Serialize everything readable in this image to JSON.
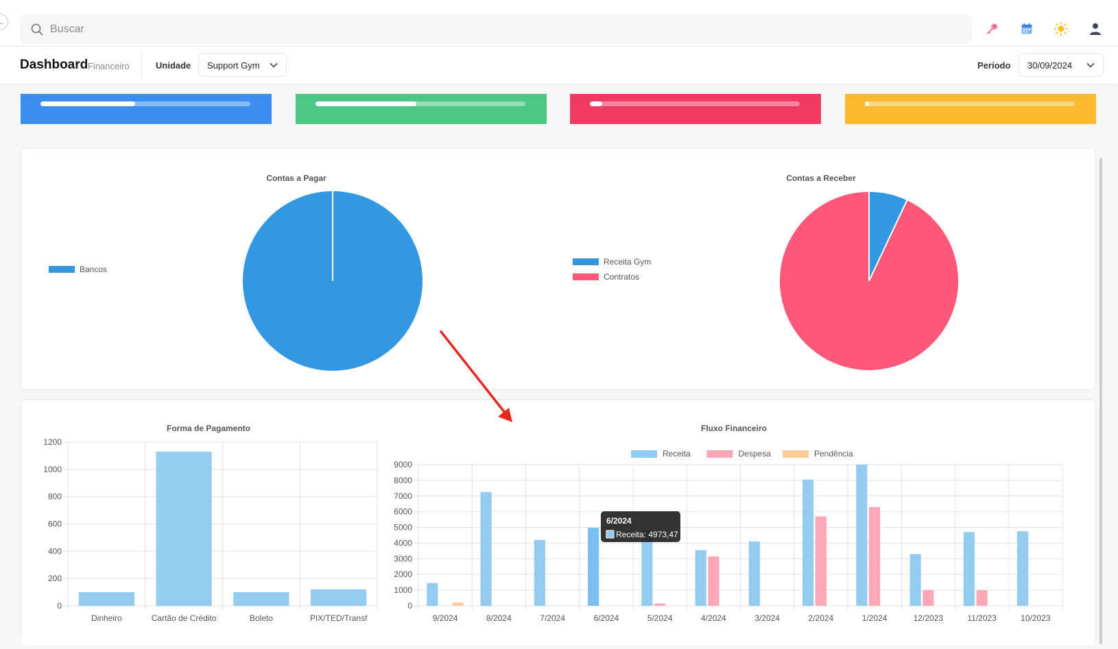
{
  "header": {
    "search_placeholder": "Buscar",
    "icons": [
      "back-icon",
      "search-icon",
      "key-icon",
      "calendar-icon",
      "sun-icon",
      "user-icon"
    ]
  },
  "subheader": {
    "title": "Dashboard",
    "subtitle": "Financeiro",
    "unit_label": "Unidade",
    "unit_value": "Support Gym",
    "period_label": "Período",
    "period_value": "30/09/2024"
  },
  "kpi_cards": [
    {
      "color": "#3b8eee",
      "progress": 0.45
    },
    {
      "color": "#4cc784",
      "progress": 0.48
    },
    {
      "color": "#ef3b62",
      "progress": 0.06
    },
    {
      "color": "#fcbb2e",
      "progress": 0.02
    }
  ],
  "colors": {
    "blue_solid": "#3298e2",
    "pink_solid": "#ff5777",
    "bar_blue": "#93cbf1",
    "bar_blue_active": "#79bff0",
    "bar_pink": "#ffa6b7",
    "bar_orange": "#ffcb9b",
    "arrow": "#e8271f"
  },
  "annotation": {
    "type": "arrow",
    "color": "#e8271f"
  },
  "chart_data": [
    {
      "type": "pie",
      "title": "Contas a Pagar",
      "labels": [
        "Bancos"
      ],
      "values": [
        100
      ],
      "colors": [
        "#3298e2"
      ]
    },
    {
      "type": "pie",
      "title": "Contas a Receber",
      "labels": [
        "Receita Gym",
        "Contratos"
      ],
      "values": [
        7,
        93
      ],
      "colors": [
        "#3298e2",
        "#ff5777"
      ]
    },
    {
      "type": "bar",
      "title": "Forma de Pagamento",
      "categories": [
        "Dinheiro",
        "Cartão de Crédito",
        "Boleto",
        "PIX/TED/Transf"
      ],
      "values": [
        100,
        1130,
        100,
        120
      ],
      "ylim": [
        0,
        1200
      ],
      "yticks": [
        "0",
        "200",
        "400",
        "600",
        "800",
        "1000",
        "1200"
      ],
      "grid": true,
      "color": "#93cbf1"
    },
    {
      "type": "bar",
      "title": "Fluxo Financeiro",
      "categories": [
        "9/2024",
        "8/2024",
        "7/2024",
        "6/2024",
        "5/2024",
        "4/2024",
        "3/2024",
        "2/2024",
        "1/2024",
        "12/2023",
        "11/2023",
        "10/2023"
      ],
      "series": [
        {
          "name": "Receita",
          "color": "#93cbf1",
          "values": [
            1450,
            7250,
            4200,
            4973.47,
            4800,
            3550,
            4100,
            8050,
            9000,
            3300,
            4700,
            4750
          ]
        },
        {
          "name": "Despesa",
          "color": "#ffa6b7",
          "values": [
            0,
            0,
            0,
            0,
            150,
            3150,
            0,
            5700,
            6300,
            1000,
            1000,
            0
          ]
        },
        {
          "name": "Pendência",
          "color": "#ffcb9b",
          "values": [
            200,
            0,
            0,
            0,
            0,
            0,
            0,
            0,
            0,
            0,
            0,
            0
          ]
        }
      ],
      "ylim": [
        0,
        9000
      ],
      "yticks": [
        "0",
        "1000",
        "2000",
        "3000",
        "4000",
        "5000",
        "6000",
        "7000",
        "8000",
        "9000"
      ],
      "grid": true,
      "legend_position": "top",
      "tooltip": {
        "title": "6/2024",
        "label": "Receita: 4973,47",
        "category_index": 3
      }
    }
  ]
}
